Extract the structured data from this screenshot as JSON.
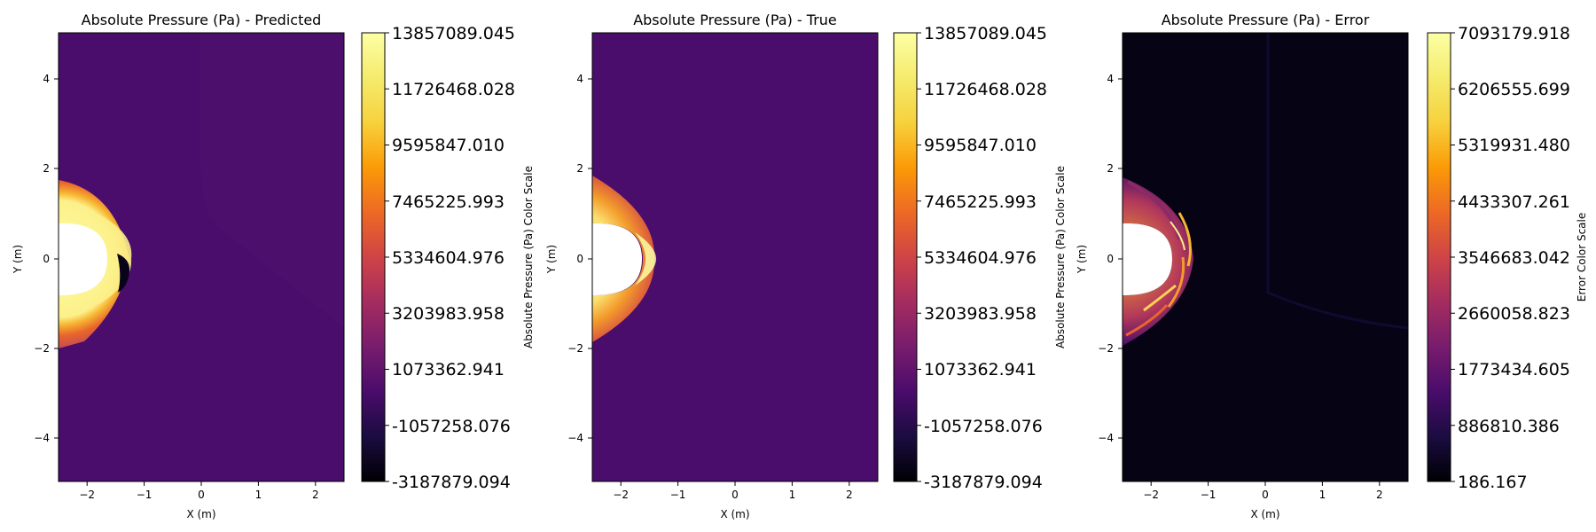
{
  "chart_data": [
    {
      "type": "heatmap",
      "title": "Absolute Pressure (Pa) - Predicted",
      "xlabel": "X (m)",
      "ylabel": "Y (m)",
      "xlim": [
        -2.5,
        2.5
      ],
      "ylim": [
        -5,
        5
      ],
      "x_ticks": [
        "−2",
        "−1",
        "0",
        "1",
        "2"
      ],
      "y_ticks": [
        "−4",
        "−2",
        "0",
        "2",
        "4"
      ],
      "colormap": "inferno",
      "colorbar": {
        "label": "Absolute Pressure (Pa) Color Scale",
        "min": -3187879.094,
        "max": 13857089.045,
        "ticks": [
          "13857089.045",
          "11726468.028",
          "9595847.010",
          "7465225.993",
          "5334604.976",
          "3203983.958",
          "1073362.941",
          "-1057258.076",
          "-3187879.094"
        ]
      },
      "background_value": 1073362.941,
      "body": {
        "shape": "semi-ellipse",
        "center_x": -2.5,
        "center_y": 0,
        "semi_x": 0.85,
        "semi_y": 0.8
      },
      "features": "asymmetric detached bow shock ahead of body, broad shocked region up to about y=1.8 and y=-1.9, low-pressure artifact behind front near x=-1.3"
    },
    {
      "type": "heatmap",
      "title": "Absolute Pressure (Pa) - True",
      "xlabel": "X (m)",
      "ylabel": "Y (m)",
      "xlim": [
        -2.5,
        2.5
      ],
      "ylim": [
        -5,
        5
      ],
      "x_ticks": [
        "−2",
        "−1",
        "0",
        "1",
        "2"
      ],
      "y_ticks": [
        "−4",
        "−2",
        "0",
        "2",
        "4"
      ],
      "colormap": "inferno",
      "colorbar": {
        "label": "Absolute Pressure (Pa) Color Scale",
        "min": -3187879.094,
        "max": 13857089.045,
        "ticks": [
          "13857089.045",
          "11726468.028",
          "9595847.010",
          "7465225.993",
          "5334604.976",
          "3203983.958",
          "1073362.941",
          "-1057258.076",
          "-3187879.094"
        ]
      },
      "background_value": 1073362.941,
      "body": {
        "shape": "semi-ellipse",
        "center_x": -2.5,
        "center_y": 0,
        "semi_x": 0.85,
        "semi_y": 0.8
      },
      "features": "smooth symmetric bow shock, peak pressure near stagnation point at x about -1.5, y=0"
    },
    {
      "type": "heatmap",
      "title": "Absolute Pressure (Pa) - Error",
      "xlabel": "X (m)",
      "ylabel": "Y (m)",
      "xlim": [
        -2.5,
        2.5
      ],
      "ylim": [
        -5,
        5
      ],
      "x_ticks": [
        "−2",
        "−1",
        "0",
        "1",
        "2"
      ],
      "y_ticks": [
        "−4",
        "−2",
        "0",
        "2",
        "4"
      ],
      "colormap": "inferno",
      "colorbar": {
        "label": "Error Color Scale",
        "min": 186.167,
        "max": 7093179.918,
        "ticks": [
          "7093179.918",
          "6206555.699",
          "5319931.480",
          "4433307.261",
          "3546683.042",
          "2660058.823",
          "1773434.605",
          "886810.386",
          "186.167"
        ]
      },
      "background_value": 186.167,
      "body": {
        "shape": "semi-ellipse",
        "center_x": -2.5,
        "center_y": 0,
        "semi_x": 0.85,
        "semi_y": 0.8
      },
      "features": "error concentrated in shock layer ahead of body, streaky bands, near zero elsewhere"
    }
  ]
}
